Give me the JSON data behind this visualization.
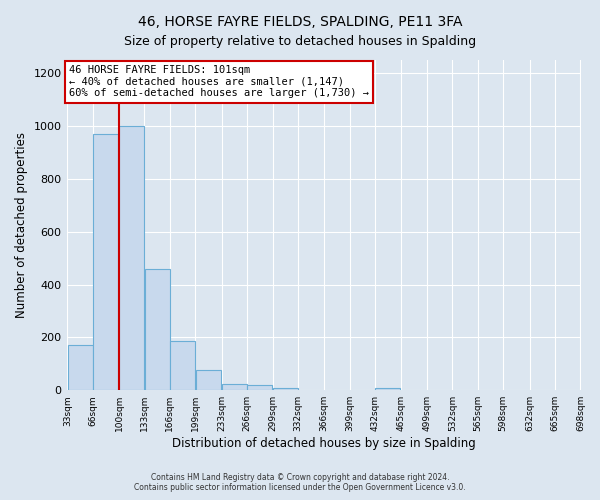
{
  "title": "46, HORSE FAYRE FIELDS, SPALDING, PE11 3FA",
  "subtitle": "Size of property relative to detached houses in Spalding",
  "xlabel": "Distribution of detached houses by size in Spalding",
  "ylabel": "Number of detached properties",
  "bar_color": "#c8d9ed",
  "bar_edge_color": "#6baed6",
  "figure_bg": "#dce6f0",
  "axes_bg": "#dce6f0",
  "annotation_box_facecolor": "#ffffff",
  "annotation_box_edgecolor": "#cc0000",
  "vertical_line_color": "#cc0000",
  "annotation_line0": "46 HORSE FAYRE FIELDS: 101sqm",
  "annotation_line1": "← 40% of detached houses are smaller (1,147)",
  "annotation_line2": "60% of semi-detached houses are larger (1,730) →",
  "bin_lefts": [
    33,
    66,
    100,
    133,
    166,
    199,
    233,
    266,
    299,
    332,
    366,
    399,
    432,
    465,
    499,
    532,
    565,
    598,
    632,
    665
  ],
  "bin_width": 33,
  "bin_labels": [
    "33sqm",
    "66sqm",
    "100sqm",
    "133sqm",
    "166sqm",
    "199sqm",
    "233sqm",
    "266sqm",
    "299sqm",
    "332sqm",
    "366sqm",
    "399sqm",
    "432sqm",
    "465sqm",
    "499sqm",
    "532sqm",
    "565sqm",
    "598sqm",
    "632sqm",
    "665sqm",
    "698sqm"
  ],
  "bar_heights": [
    170,
    970,
    1000,
    460,
    185,
    75,
    25,
    20,
    10,
    0,
    0,
    0,
    10,
    0,
    0,
    0,
    0,
    0,
    0,
    0
  ],
  "vertical_line_x": 100,
  "ylim": [
    0,
    1250
  ],
  "yticks": [
    0,
    200,
    400,
    600,
    800,
    1000,
    1200
  ],
  "grid_color": "#ffffff",
  "footer1": "Contains HM Land Registry data © Crown copyright and database right 2024.",
  "footer2": "Contains public sector information licensed under the Open Government Licence v3.0."
}
